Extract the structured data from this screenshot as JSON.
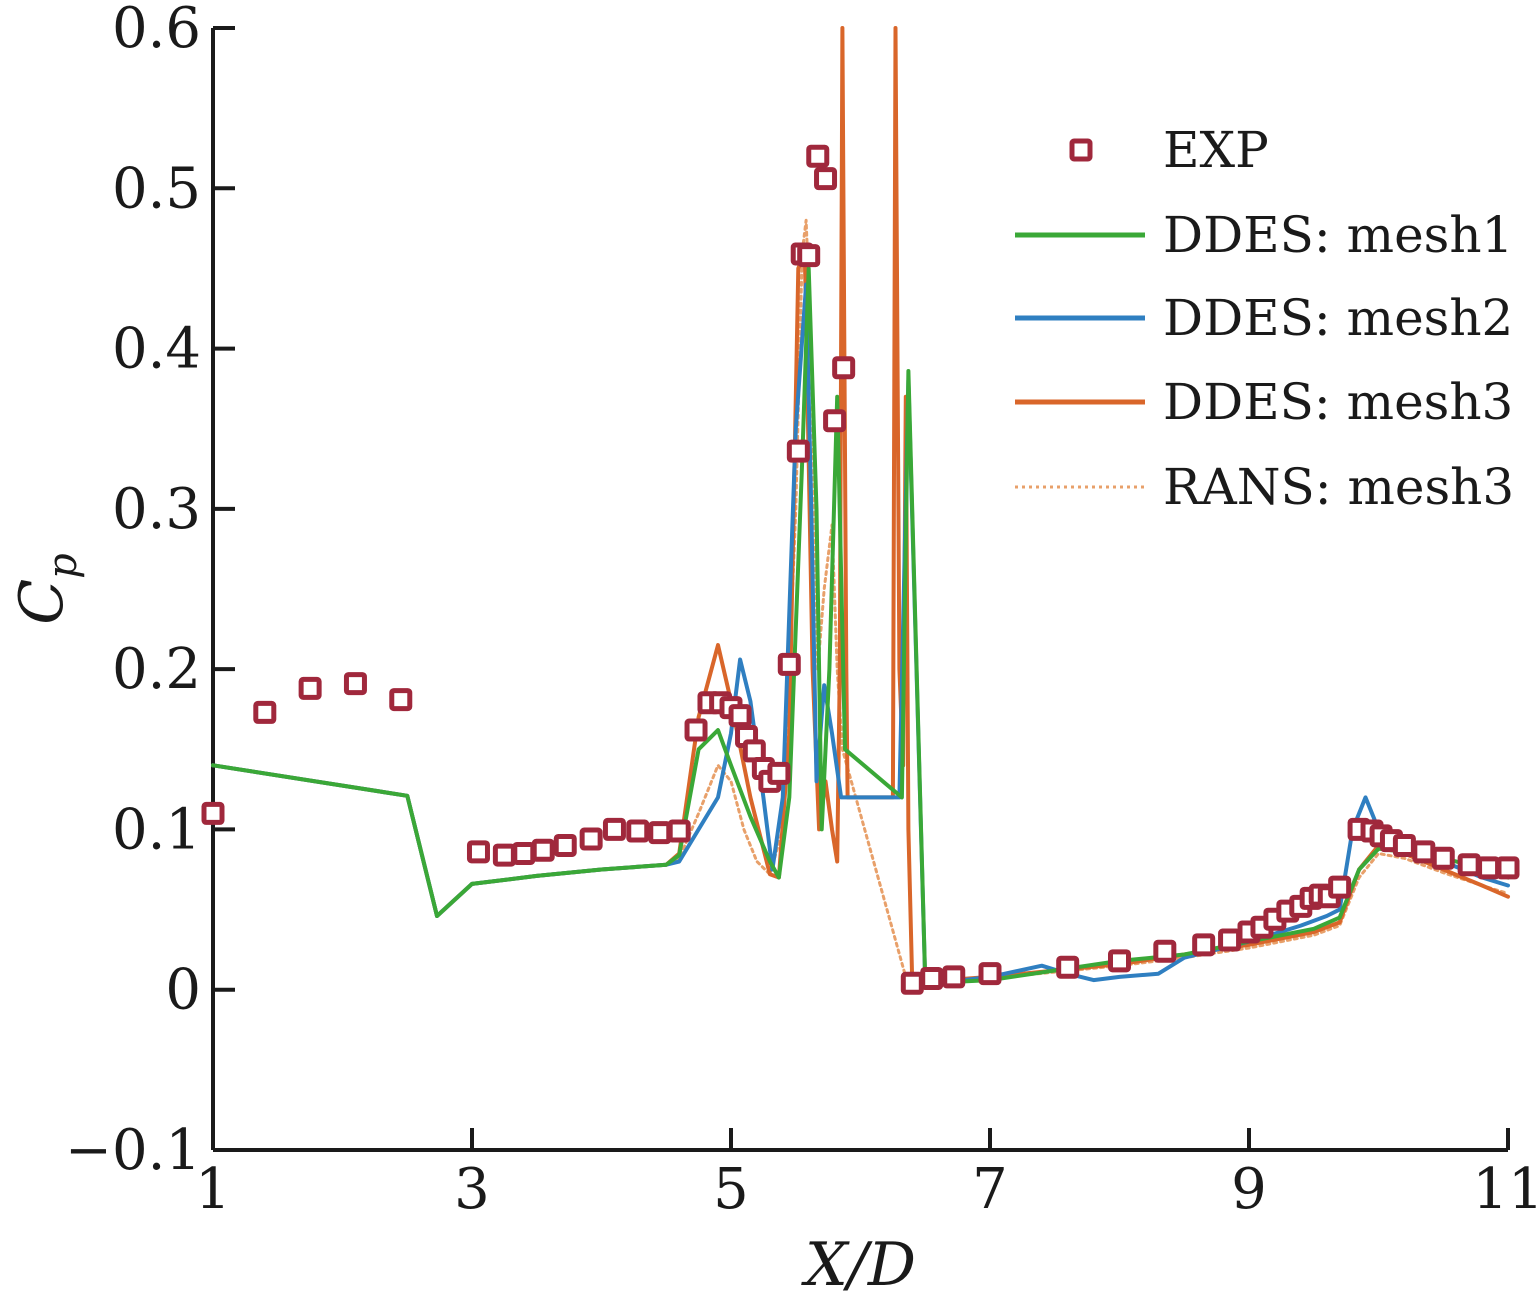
{
  "chart_data": {
    "type": "line",
    "xlabel": "X/D",
    "ylabel": "C",
    "ylabel_sub": "p",
    "xlim": [
      1,
      11
    ],
    "ylim": [
      -0.1,
      0.6
    ],
    "xticks": [
      1,
      3,
      5,
      7,
      9,
      11
    ],
    "yticks": [
      -0.1,
      0,
      0.1,
      0.2,
      0.3,
      0.4,
      0.5,
      0.6
    ],
    "ytick_labels": [
      "−0.1",
      "0",
      "0.1",
      "0.2",
      "0.3",
      "0.4",
      "0.5",
      "0.6"
    ],
    "grid": false,
    "legend_position": "top-right",
    "colors": {
      "exp_marker": "#a0283c",
      "mesh1": "#3aa837",
      "mesh2": "#2f7fc1",
      "mesh3": "#d9662a",
      "rans": "#e8a06a"
    },
    "series": [
      {
        "name": "EXP",
        "kind": "marker",
        "color": "#a0283c",
        "x": [
          1.0,
          1.4,
          1.75,
          2.1,
          2.45,
          3.05,
          3.25,
          3.4,
          3.55,
          3.72,
          3.92,
          4.1,
          4.28,
          4.45,
          4.6,
          4.73,
          4.83,
          4.92,
          5.0,
          5.07,
          5.12,
          5.18,
          5.25,
          5.3,
          5.37,
          5.45,
          5.52,
          5.55,
          5.6,
          5.67,
          5.73,
          5.8,
          5.87,
          6.4,
          6.55,
          6.72,
          7.0,
          7.6,
          8.0,
          8.35,
          8.65,
          8.85,
          9.0,
          9.1,
          9.2,
          9.3,
          9.4,
          9.48,
          9.55,
          9.62,
          9.7,
          9.85,
          9.95,
          10.02,
          10.1,
          10.2,
          10.35,
          10.5,
          10.7,
          10.85,
          11.0
        ],
        "y": [
          0.11,
          0.173,
          0.188,
          0.191,
          0.181,
          0.086,
          0.084,
          0.085,
          0.087,
          0.09,
          0.094,
          0.1,
          0.099,
          0.098,
          0.099,
          0.162,
          0.179,
          0.179,
          0.176,
          0.171,
          0.158,
          0.149,
          0.138,
          0.13,
          0.135,
          0.203,
          0.336,
          0.459,
          0.458,
          0.52,
          0.506,
          0.355,
          0.388,
          0.004,
          0.007,
          0.008,
          0.01,
          0.014,
          0.018,
          0.024,
          0.028,
          0.031,
          0.036,
          0.039,
          0.044,
          0.049,
          0.052,
          0.057,
          0.059,
          0.058,
          0.064,
          0.1,
          0.099,
          0.096,
          0.093,
          0.09,
          0.086,
          0.082,
          0.078,
          0.076,
          0.076
        ]
      },
      {
        "name": "DDES: mesh1",
        "kind": "line",
        "color": "#3aa837",
        "width": 4,
        "x": [
          1.0,
          2.5,
          2.73,
          3.0,
          3.5,
          4.0,
          4.5,
          4.6,
          4.75,
          4.9,
          5.0,
          5.15,
          5.3,
          5.37,
          5.45,
          5.55,
          5.6,
          5.66,
          5.7,
          5.76,
          5.82,
          5.88,
          6.32,
          6.37,
          6.5,
          7.0,
          7.5,
          8.0,
          8.5,
          9.0,
          9.5,
          9.7,
          9.85,
          10.0,
          10.2,
          10.5,
          10.8,
          11.0
        ],
        "y": [
          0.14,
          0.121,
          0.046,
          0.066,
          0.071,
          0.075,
          0.078,
          0.084,
          0.15,
          0.162,
          0.14,
          0.108,
          0.08,
          0.07,
          0.12,
          0.33,
          0.45,
          0.3,
          0.1,
          0.2,
          0.37,
          0.15,
          0.12,
          0.386,
          0.004,
          0.006,
          0.012,
          0.018,
          0.022,
          0.03,
          0.038,
          0.045,
          0.075,
          0.088,
          0.086,
          0.082,
          0.076,
          0.07
        ]
      },
      {
        "name": "DDES: mesh2",
        "kind": "line",
        "color": "#2f7fc1",
        "width": 4,
        "x": [
          1.0,
          2.5,
          2.73,
          3.0,
          3.5,
          4.0,
          4.5,
          4.6,
          4.75,
          4.9,
          5.0,
          5.07,
          5.15,
          5.25,
          5.32,
          5.4,
          5.5,
          5.58,
          5.62,
          5.66,
          5.72,
          5.78,
          5.85,
          6.3,
          6.37,
          6.5,
          7.0,
          7.4,
          7.6,
          7.8,
          8.0,
          8.3,
          8.5,
          9.0,
          9.4,
          9.6,
          9.7,
          9.8,
          9.85,
          9.9,
          10.0,
          10.2,
          10.5,
          10.8,
          11.0
        ],
        "y": [
          0.14,
          0.121,
          0.046,
          0.066,
          0.071,
          0.075,
          0.078,
          0.08,
          0.1,
          0.12,
          0.16,
          0.206,
          0.18,
          0.12,
          0.075,
          0.12,
          0.35,
          0.44,
          0.3,
          0.13,
          0.19,
          0.16,
          0.12,
          0.12,
          0.38,
          0.003,
          0.008,
          0.015,
          0.01,
          0.006,
          0.008,
          0.01,
          0.02,
          0.03,
          0.04,
          0.046,
          0.05,
          0.1,
          0.11,
          0.12,
          0.1,
          0.09,
          0.08,
          0.07,
          0.065
        ]
      },
      {
        "name": "DDES: mesh3",
        "kind": "line",
        "color": "#d9662a",
        "width": 4,
        "x": [
          1.0,
          2.5,
          2.73,
          3.0,
          3.5,
          4.0,
          4.5,
          4.6,
          4.75,
          4.9,
          5.0,
          5.15,
          5.3,
          5.37,
          5.45,
          5.52,
          5.57,
          5.63,
          5.68,
          5.73,
          5.78,
          5.82,
          5.84,
          5.86,
          5.89,
          5.9,
          6.25,
          6.27,
          6.3,
          6.33,
          6.35,
          6.37,
          6.4,
          6.5,
          7.0,
          7.5,
          8.0,
          8.5,
          9.0,
          9.5,
          9.7,
          9.85,
          10.0,
          10.2,
          10.5,
          10.8,
          11.0
        ],
        "y": [
          0.14,
          0.121,
          0.046,
          0.066,
          0.071,
          0.075,
          0.078,
          0.085,
          0.17,
          0.215,
          0.18,
          0.12,
          0.072,
          0.07,
          0.16,
          0.45,
          0.46,
          0.2,
          0.1,
          0.13,
          0.1,
          0.08,
          0.2,
          0.6,
          0.2,
          0.12,
          0.12,
          0.6,
          0.2,
          0.14,
          0.37,
          0.1,
          0.003,
          0.005,
          0.008,
          0.012,
          0.016,
          0.022,
          0.028,
          0.036,
          0.042,
          0.075,
          0.09,
          0.085,
          0.075,
          0.065,
          0.058
        ]
      },
      {
        "name": "RANS: mesh3",
        "kind": "dotted",
        "color": "#e8a06a",
        "width": 3,
        "x": [
          1.0,
          2.5,
          2.73,
          3.0,
          3.5,
          4.0,
          4.5,
          4.6,
          4.75,
          4.9,
          5.0,
          5.1,
          5.2,
          5.3,
          5.4,
          5.5,
          5.55,
          5.58,
          5.62,
          5.67,
          5.72,
          5.78,
          5.82,
          5.86,
          6.37,
          6.5,
          7.0,
          7.5,
          8.0,
          8.5,
          9.0,
          9.5,
          9.7,
          9.85,
          10.0,
          10.2,
          10.5,
          10.8,
          11.0
        ],
        "y": [
          0.14,
          0.121,
          0.046,
          0.066,
          0.071,
          0.075,
          0.078,
          0.082,
          0.11,
          0.14,
          0.13,
          0.1,
          0.08,
          0.072,
          0.1,
          0.3,
          0.46,
          0.48,
          0.4,
          0.2,
          0.25,
          0.29,
          0.2,
          0.15,
          0.002,
          0.004,
          0.007,
          0.011,
          0.015,
          0.02,
          0.026,
          0.034,
          0.04,
          0.07,
          0.085,
          0.082,
          0.073,
          0.065,
          0.06
        ]
      }
    ]
  }
}
